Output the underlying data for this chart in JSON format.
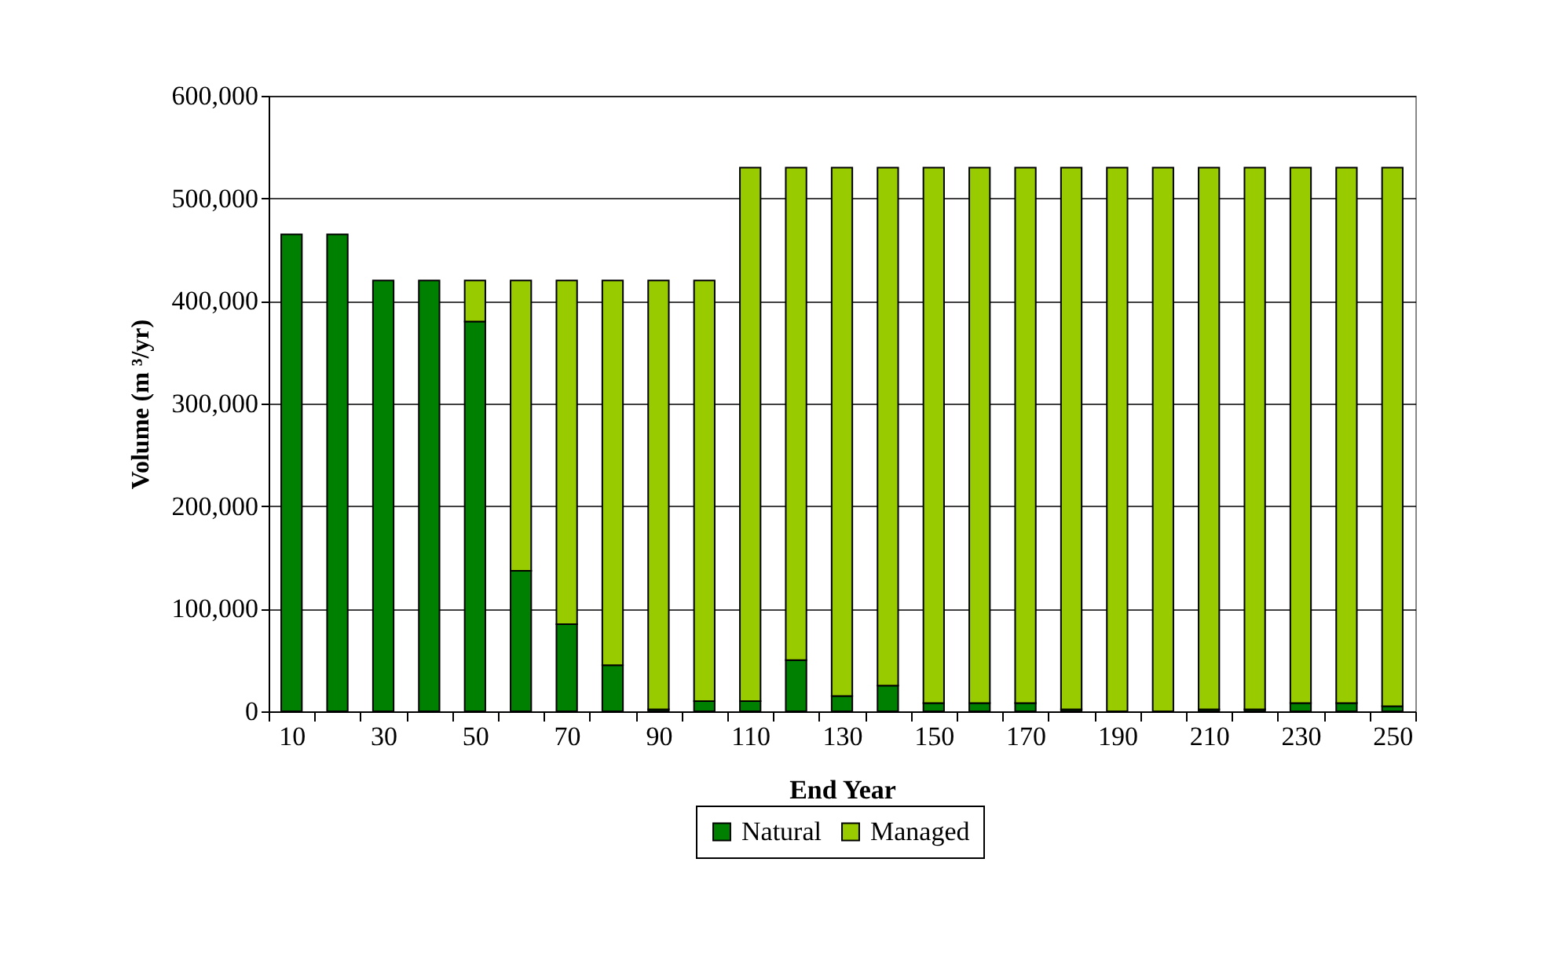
{
  "chart_data": {
    "type": "bar",
    "stacked": true,
    "xlabel": "End Year",
    "ylabel": "Volume (m ³/yr)",
    "categories": [
      "10",
      null,
      "30",
      null,
      "50",
      null,
      "70",
      null,
      "90",
      null,
      "110",
      null,
      "130",
      null,
      "150",
      null,
      "170",
      null,
      "190",
      null,
      "210",
      null,
      "230",
      null,
      "250"
    ],
    "series": [
      {
        "name": "Natural",
        "color": "#008000",
        "values": [
          465000,
          465000,
          420000,
          420000,
          380000,
          137000,
          85000,
          45000,
          2000,
          10000,
          10000,
          50000,
          15000,
          25000,
          8000,
          8000,
          8000,
          2000,
          0,
          0,
          2000,
          2000,
          8000,
          8000,
          5000
        ]
      },
      {
        "name": "Managed",
        "color": "#99cc00",
        "values": [
          0,
          0,
          0,
          0,
          40000,
          283000,
          335000,
          375000,
          418000,
          410000,
          520000,
          480000,
          515000,
          505000,
          522000,
          522000,
          522000,
          528000,
          530000,
          530000,
          528000,
          528000,
          522000,
          522000,
          525000
        ]
      }
    ],
    "ylim": [
      0,
      600000
    ],
    "yticks": [
      0,
      {
        "value": 100000,
        "label": "100,000"
      },
      {
        "value": 200000,
        "label": "200,000"
      },
      {
        "value": 300000,
        "label": "300,000"
      },
      {
        "value": 400000,
        "label": "400,000"
      },
      {
        "value": 500000,
        "label": "500,000"
      },
      {
        "value": 600000,
        "label": "600,000"
      }
    ],
    "grid": "y",
    "legend": "bottom"
  }
}
